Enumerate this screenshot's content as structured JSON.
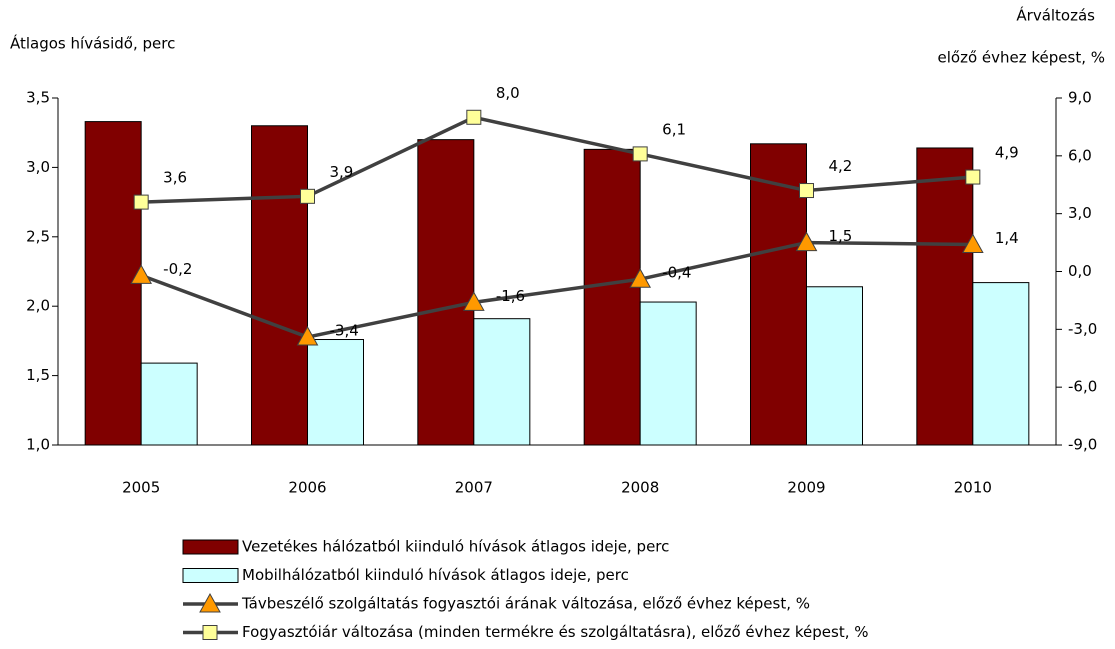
{
  "chart_data": {
    "type": "bar",
    "y_label": "Átlagos hívásidő, perc",
    "y2_label": [
      "Árváltozás",
      "előző évhez képest, %"
    ],
    "categories": [
      "2005",
      "2006",
      "2007",
      "2008",
      "2009",
      "2010"
    ],
    "ylim": [
      1.0,
      3.5
    ],
    "yticks": [
      {
        "value": 1.0,
        "label": "1,0"
      },
      {
        "value": 1.5,
        "label": "1,5"
      },
      {
        "value": 2.0,
        "label": "2,0"
      },
      {
        "value": 2.5,
        "label": "2,5"
      },
      {
        "value": 3.0,
        "label": "3,0"
      },
      {
        "value": 3.5,
        "label": "3,5"
      }
    ],
    "y2lim": [
      -9,
      9
    ],
    "y2ticks": [
      {
        "value": -9,
        "label": "-9,0"
      },
      {
        "value": -6,
        "label": "-6,0"
      },
      {
        "value": -3,
        "label": "-3,0"
      },
      {
        "value": 0,
        "label": "0,0"
      },
      {
        "value": 3,
        "label": "3,0"
      },
      {
        "value": 6,
        "label": "6,0"
      },
      {
        "value": 9,
        "label": "9,0"
      }
    ],
    "series": [
      {
        "name": "Vezetékes hálózatból kiinduló hívások átlagos ideje, perc",
        "type": "bar",
        "color": "#800000",
        "values": [
          3.33,
          3.3,
          3.2,
          3.13,
          3.17,
          3.14
        ]
      },
      {
        "name": "Mobilhálózatból kiinduló hívások átlagos ideje, perc",
        "type": "bar",
        "color": "#ccffff",
        "values": [
          1.59,
          1.76,
          1.91,
          2.03,
          2.14,
          2.17
        ]
      },
      {
        "name": "Távbeszélő szolgáltatás fogyasztói árának változása, előző évhez képest, %",
        "type": "line",
        "axis": "y2",
        "color": "#404040",
        "marker": "triangle",
        "marker_color": "#ff9900",
        "values": [
          -0.2,
          -3.4,
          -1.6,
          -0.4,
          1.5,
          1.4
        ],
        "value_labels": [
          "-0,2",
          "-3,4",
          "-1,6",
          "-0,4",
          "1,5",
          "1,4"
        ]
      },
      {
        "name": "Fogyasztóiár változása (minden termékre és szolgáltatásra), előző évhez képest, %",
        "type": "line",
        "axis": "y2",
        "color": "#404040",
        "marker": "square",
        "marker_color": "#ffff99",
        "values": [
          3.6,
          3.9,
          8.0,
          6.1,
          4.2,
          4.9
        ],
        "value_labels": [
          "3,6",
          "3,9",
          "8,0",
          "6,1",
          "4,2",
          "4,9"
        ]
      }
    ]
  }
}
